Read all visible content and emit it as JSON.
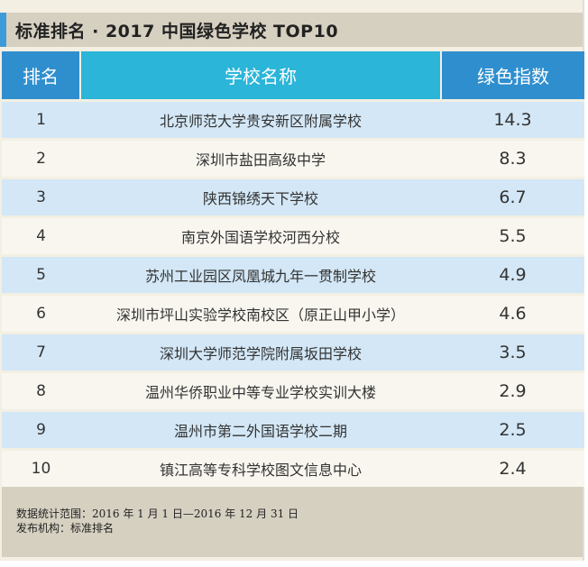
{
  "title": "标准排名 · 2017 中国绿色学校 TOP10",
  "colors": {
    "accent_bar": "#3f9bd8",
    "header_blue": "#2f8fce",
    "header_cyan": "#2bb5d8",
    "row_blue": "#d3e7f6",
    "row_cream": "#f8f6ef"
  },
  "chart_data": {
    "type": "table",
    "title": "标准排名 · 2017 中国绿色学校 TOP10",
    "columns": [
      "排名",
      "学校名称",
      "绿色指数"
    ],
    "rows": [
      {
        "rank": "1",
        "name": "北京师范大学贵安新区附属学校",
        "index": "14.3"
      },
      {
        "rank": "2",
        "name": "深圳市盐田高级中学",
        "index": "8.3"
      },
      {
        "rank": "3",
        "name": "陕西锦绣天下学校",
        "index": "6.7"
      },
      {
        "rank": "4",
        "name": "南京外国语学校河西分校",
        "index": "5.5"
      },
      {
        "rank": "5",
        "name": "苏州工业园区凤凰城九年一贯制学校",
        "index": "4.9"
      },
      {
        "rank": "6",
        "name": "深圳市坪山实验学校南校区（原正山甲小学）",
        "index": "4.6"
      },
      {
        "rank": "7",
        "name": "深圳大学师范学院附属坂田学校",
        "index": "3.5"
      },
      {
        "rank": "8",
        "name": "温州华侨职业中等专业学校实训大楼",
        "index": "2.9"
      },
      {
        "rank": "9",
        "name": "温州市第二外国语学校二期",
        "index": "2.5"
      },
      {
        "rank": "10",
        "name": "镇江高等专科学校图文信息中心",
        "index": "2.4"
      }
    ]
  },
  "footer": {
    "line1": "数据统计范围：2016 年 1 月 1 日—2016 年 12 月 31 日",
    "line2": "发布机构：标准排名"
  }
}
